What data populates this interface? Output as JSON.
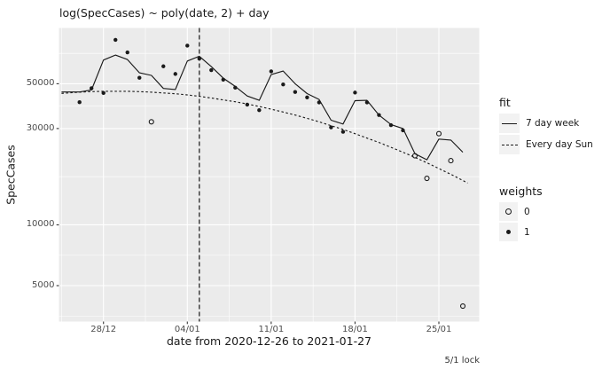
{
  "title": "log(SpecCases) ~ poly(date, 2) + day",
  "caption": "5/1 lock",
  "colors": {
    "panel_background": "#EBEBEB",
    "gridline": "#FFFFFF",
    "axis_text": "#4D4D4D",
    "ink": "#1A1A1A",
    "legend_key_background": "#F2F2F2"
  },
  "legend": {
    "fit": {
      "title": "fit",
      "items": [
        {
          "label": "7 day week",
          "style": "solid-line"
        },
        {
          "label": "Every day Sun",
          "style": "dashed-line"
        }
      ]
    },
    "weights": {
      "title": "weights",
      "items": [
        {
          "label": "0",
          "style": "open-circle"
        },
        {
          "label": "1",
          "style": "filled-circle"
        }
      ]
    }
  },
  "chart_data": {
    "type": "scatter",
    "title": "log(SpecCases) ~ poly(date, 2) + day",
    "xlabel": "date from 2020-12-26 to 2021-01-27",
    "ylabel": "SpecCases",
    "y_scale": "log10",
    "ylim": [
      3400,
      93000
    ],
    "x_range_dates": [
      "2020-12-26",
      "2021-01-27"
    ],
    "y_ticks": [
      50000,
      30000,
      10000,
      5000
    ],
    "y_tick_labels": [
      "50000",
      "30000",
      "10000",
      "5000"
    ],
    "y_minor": [
      70711,
      38730,
      17321,
      7071,
      3536
    ],
    "x_tick_days": [
      2,
      9,
      16,
      23,
      30
    ],
    "x_tick_labels": [
      "28/12",
      "04/01",
      "11/01",
      "18/01",
      "25/01"
    ],
    "x_minor_days": [
      -1.5,
      5.5,
      12.5,
      19.5,
      26.5
    ],
    "grid": true,
    "legend_position": "right",
    "vline": {
      "date": "2021-01-05",
      "day_offset": 10,
      "style": "dashed",
      "note": "5/1 lock"
    },
    "points": [
      {
        "date": "2020-12-26",
        "t": 0,
        "value": 40500,
        "weight": 1
      },
      {
        "date": "2020-12-27",
        "t": 1,
        "value": 47500,
        "weight": 1
      },
      {
        "date": "2020-12-28",
        "t": 2,
        "value": 45000,
        "weight": 1
      },
      {
        "date": "2020-12-29",
        "t": 3,
        "value": 82500,
        "weight": 1
      },
      {
        "date": "2020-12-30",
        "t": 4,
        "value": 71500,
        "weight": 1
      },
      {
        "date": "2020-12-31",
        "t": 5,
        "value": 53500,
        "weight": 1
      },
      {
        "date": "2021-01-01",
        "t": 6,
        "value": 32400,
        "weight": 0
      },
      {
        "date": "2021-01-02",
        "t": 7,
        "value": 61000,
        "weight": 1
      },
      {
        "date": "2021-01-03",
        "t": 8,
        "value": 55900,
        "weight": 1
      },
      {
        "date": "2021-01-04",
        "t": 9,
        "value": 77200,
        "weight": 1
      },
      {
        "date": "2021-01-05",
        "t": 10,
        "value": 66600,
        "weight": 1
      },
      {
        "date": "2021-01-06",
        "t": 11,
        "value": 58400,
        "weight": 1
      },
      {
        "date": "2021-01-07",
        "t": 12,
        "value": 52400,
        "weight": 1
      },
      {
        "date": "2021-01-08",
        "t": 13,
        "value": 47800,
        "weight": 1
      },
      {
        "date": "2021-01-09",
        "t": 14,
        "value": 39400,
        "weight": 1
      },
      {
        "date": "2021-01-10",
        "t": 15,
        "value": 37000,
        "weight": 1
      },
      {
        "date": "2021-01-11",
        "t": 16,
        "value": 57600,
        "weight": 1
      },
      {
        "date": "2021-01-12",
        "t": 17,
        "value": 49600,
        "weight": 1
      },
      {
        "date": "2021-01-13",
        "t": 18,
        "value": 45500,
        "weight": 1
      },
      {
        "date": "2021-01-14",
        "t": 19,
        "value": 42800,
        "weight": 1
      },
      {
        "date": "2021-01-15",
        "t": 20,
        "value": 40400,
        "weight": 1
      },
      {
        "date": "2021-01-16",
        "t": 21,
        "value": 30400,
        "weight": 1
      },
      {
        "date": "2021-01-17",
        "t": 22,
        "value": 28900,
        "weight": 1
      },
      {
        "date": "2021-01-18",
        "t": 23,
        "value": 45200,
        "weight": 1
      },
      {
        "date": "2021-01-19",
        "t": 24,
        "value": 40400,
        "weight": 1
      },
      {
        "date": "2021-01-20",
        "t": 25,
        "value": 35000,
        "weight": 1
      },
      {
        "date": "2021-01-21",
        "t": 26,
        "value": 31200,
        "weight": 1
      },
      {
        "date": "2021-01-22",
        "t": 27,
        "value": 29400,
        "weight": 1
      },
      {
        "date": "2021-01-23",
        "t": 28,
        "value": 22000,
        "weight": 0
      },
      {
        "date": "2021-01-24",
        "t": 29,
        "value": 17000,
        "weight": 0
      },
      {
        "date": "2021-01-25",
        "t": 30,
        "value": 28300,
        "weight": 0
      },
      {
        "date": "2021-01-26",
        "t": 31,
        "value": 20800,
        "weight": 0
      },
      {
        "date": "2021-01-27",
        "t": 32,
        "value": 3960,
        "weight": 0
      }
    ],
    "series": [
      {
        "name": "7 day week",
        "style": "solid",
        "values": [
          [
            -1.5,
            45500
          ],
          [
            0,
            45500
          ],
          [
            1,
            46600
          ],
          [
            2,
            65500
          ],
          [
            3,
            69300
          ],
          [
            4,
            65900
          ],
          [
            5,
            56600
          ],
          [
            6,
            55000
          ],
          [
            7,
            47400
          ],
          [
            8,
            46800
          ],
          [
            9,
            64800
          ],
          [
            10,
            68400
          ],
          [
            11,
            60800
          ],
          [
            12,
            53300
          ],
          [
            13,
            48500
          ],
          [
            14,
            43500
          ],
          [
            15,
            41400
          ],
          [
            16,
            55500
          ],
          [
            17,
            57800
          ],
          [
            18,
            50000
          ],
          [
            19,
            44700
          ],
          [
            20,
            41800
          ],
          [
            21,
            33000
          ],
          [
            22,
            31600
          ],
          [
            23,
            41200
          ],
          [
            24,
            41400
          ],
          [
            25,
            35000
          ],
          [
            26,
            31400
          ],
          [
            27,
            30000
          ],
          [
            28,
            22500
          ],
          [
            29,
            21000
          ],
          [
            30,
            26600
          ],
          [
            31,
            26300
          ],
          [
            32,
            22900
          ]
        ]
      },
      {
        "name": "Every day Sun",
        "style": "dashed",
        "values": [
          [
            -1.5,
            44800
          ],
          [
            0,
            45400
          ],
          [
            1,
            45700
          ],
          [
            2,
            45900
          ],
          [
            3,
            45900
          ],
          [
            4,
            45900
          ],
          [
            5,
            45700
          ],
          [
            6,
            45400
          ],
          [
            7,
            45000
          ],
          [
            8,
            44600
          ],
          [
            9,
            44000
          ],
          [
            10,
            43300
          ],
          [
            11,
            42500
          ],
          [
            12,
            41600
          ],
          [
            13,
            40700
          ],
          [
            14,
            39700
          ],
          [
            15,
            38600
          ],
          [
            16,
            37400
          ],
          [
            17,
            36200
          ],
          [
            18,
            35000
          ],
          [
            19,
            33700
          ],
          [
            20,
            32400
          ],
          [
            21,
            31000
          ],
          [
            22,
            29700
          ],
          [
            23,
            28300
          ],
          [
            24,
            26900
          ],
          [
            25,
            25600
          ],
          [
            26,
            24200
          ],
          [
            27,
            22900
          ],
          [
            28,
            21600
          ],
          [
            29,
            20300
          ],
          [
            30,
            19000
          ],
          [
            31,
            17800
          ],
          [
            32,
            16600
          ],
          [
            32.4,
            16100
          ]
        ]
      }
    ]
  }
}
